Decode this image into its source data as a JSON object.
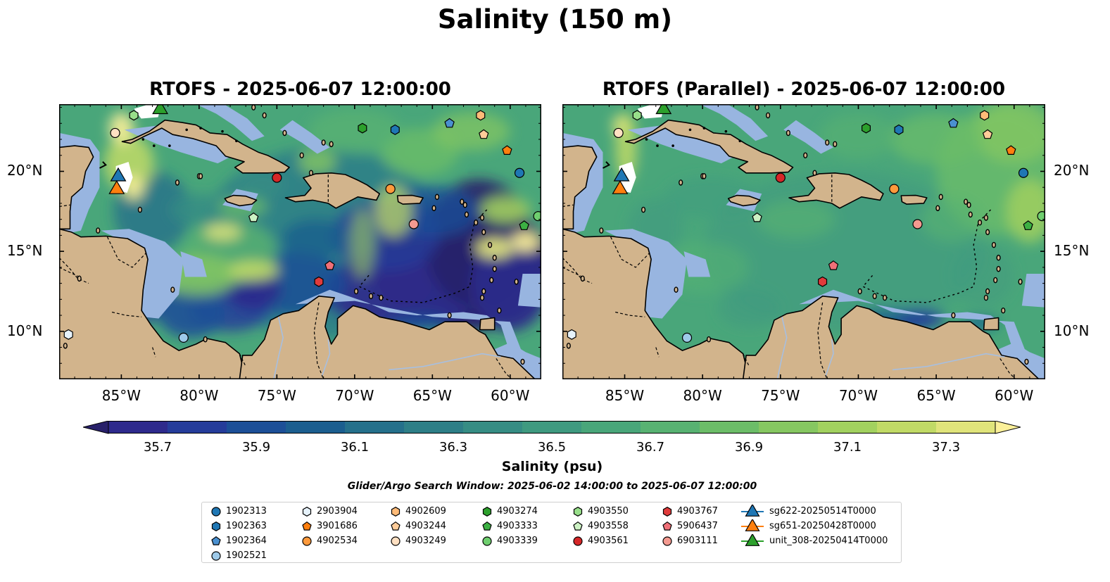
{
  "figure": {
    "title": "Salinity (150 m)",
    "panels": [
      {
        "id": "rtofs",
        "title": "RTOFS - 2025-06-07 12:00:00"
      },
      {
        "id": "rtofs_parallel",
        "title": "RTOFS (Parallel) - 2025-06-07 12:00:00"
      }
    ],
    "axes": {
      "lon_ticks": [
        "85°W",
        "80°W",
        "75°W",
        "70°W",
        "65°W",
        "60°W"
      ],
      "lat_ticks": [
        "20°N",
        "15°N",
        "10°N"
      ]
    },
    "colorbar": {
      "label": "Salinity (psu)",
      "ticks": [
        "35.7",
        "35.9",
        "36.1",
        "36.3",
        "36.5",
        "36.7",
        "36.9",
        "37.1",
        "37.3"
      ],
      "range": [
        35.6,
        37.4
      ],
      "colors": [
        "#28206a",
        "#2e2a8c",
        "#253c9a",
        "#1c4f97",
        "#1b5e8f",
        "#25708b",
        "#2e7f87",
        "#368d84",
        "#3f9a80",
        "#49a67a",
        "#58b272",
        "#6cbd68",
        "#86c761",
        "#a2d15f",
        "#c1da66",
        "#e0e47b",
        "#fbf099"
      ]
    },
    "map_colors": {
      "land": "#d2b48c",
      "shallow": "#98b5e0",
      "deep_pacific": "#28206a",
      "river": "#a7bfe0"
    },
    "search_window": "Glider/Argo Search Window: 2025-06-02 14:00:00 to 2025-06-07 12:00:00",
    "legend": [
      {
        "label": "1902313",
        "marker": "circle",
        "color": "#1f77b4"
      },
      {
        "label": "1902363",
        "marker": "hexagon",
        "color": "#1f77b4"
      },
      {
        "label": "1902364",
        "marker": "pentagon",
        "color": "#4a90d0"
      },
      {
        "label": "1902521",
        "marker": "circle",
        "color": "#9ecae9"
      },
      {
        "label": "2903904",
        "marker": "hexagon",
        "color": "#e6f2fb"
      },
      {
        "label": "3901686",
        "marker": "pentagon",
        "color": "#ff7f0e"
      },
      {
        "label": "4902534",
        "marker": "circle",
        "color": "#ff9a3c"
      },
      {
        "label": "4902609",
        "marker": "hexagon",
        "color": "#ffbb78"
      },
      {
        "label": "4903244",
        "marker": "pentagon",
        "color": "#ffcc99"
      },
      {
        "label": "4903249",
        "marker": "circle",
        "color": "#ffe0c2"
      },
      {
        "label": "4903274",
        "marker": "hexagon",
        "color": "#2ca02c"
      },
      {
        "label": "4903333",
        "marker": "pentagon",
        "color": "#3cb043"
      },
      {
        "label": "4903339",
        "marker": "circle",
        "color": "#6fcf6f"
      },
      {
        "label": "4903550",
        "marker": "hexagon",
        "color": "#98df8a"
      },
      {
        "label": "4903558",
        "marker": "pentagon",
        "color": "#cdf2c4"
      },
      {
        "label": "4903561",
        "marker": "circle",
        "color": "#d62728"
      },
      {
        "label": "4903767",
        "marker": "hexagon",
        "color": "#e03b3b"
      },
      {
        "label": "5906437",
        "marker": "pentagon",
        "color": "#f07078"
      },
      {
        "label": "6903111",
        "marker": "circle",
        "color": "#f49a90"
      },
      {
        "label": "sg622-20250514T0000",
        "marker": "triangle",
        "color": "#1f77b4"
      },
      {
        "label": "sg651-20250428T0000",
        "marker": "triangle",
        "color": "#ff7f0e"
      },
      {
        "label": "unit_308-20250414T0000",
        "marker": "triangle",
        "color": "#2ca02c"
      }
    ],
    "observations": [
      {
        "id": "1902313",
        "lon": -59.4,
        "lat": 19.9
      },
      {
        "id": "1902363",
        "lon": -67.4,
        "lat": 22.6
      },
      {
        "id": "1902364",
        "lon": -63.9,
        "lat": 23.0
      },
      {
        "id": "1902521",
        "lon": -81.0,
        "lat": 9.6
      },
      {
        "id": "2903904",
        "lon": -88.4,
        "lat": 9.8
      },
      {
        "id": "3901686",
        "lon": -60.2,
        "lat": 21.3
      },
      {
        "id": "4902534",
        "lon": -67.7,
        "lat": 18.9
      },
      {
        "id": "4902609",
        "lon": -61.9,
        "lat": 23.5
      },
      {
        "id": "4903244",
        "lon": -61.7,
        "lat": 22.3
      },
      {
        "id": "4903249",
        "lon": -85.4,
        "lat": 22.4
      },
      {
        "id": "4903274",
        "lon": -69.5,
        "lat": 22.7
      },
      {
        "id": "4903333",
        "lon": -59.1,
        "lat": 16.6
      },
      {
        "id": "4903339",
        "lon": -58.2,
        "lat": 17.2
      },
      {
        "id": "4903550",
        "lon": -84.2,
        "lat": 23.5
      },
      {
        "id": "4903558",
        "lon": -76.5,
        "lat": 17.1
      },
      {
        "id": "4903561",
        "lon": -75.0,
        "lat": 19.6
      },
      {
        "id": "4903767",
        "lon": -72.3,
        "lat": 13.1
      },
      {
        "id": "5906437",
        "lon": -71.6,
        "lat": 14.1
      },
      {
        "id": "6903111",
        "lon": -66.2,
        "lat": 16.7
      },
      {
        "id": "sg622-20250514T0000",
        "lon": -85.2,
        "lat": 19.8
      },
      {
        "id": "sg651-20250428T0000",
        "lon": -85.3,
        "lat": 19.0
      },
      {
        "id": "unit_308-20250414T0000",
        "lon": -82.5,
        "lat": 24.0
      }
    ]
  }
}
